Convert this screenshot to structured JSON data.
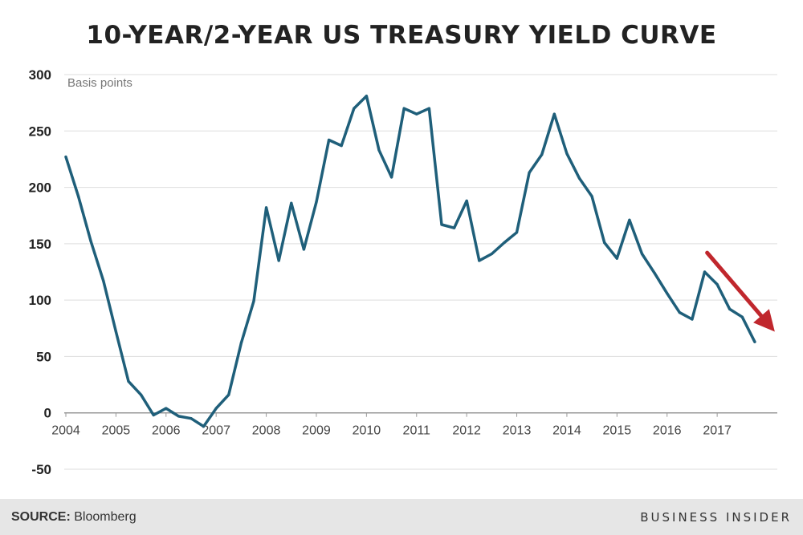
{
  "header": {
    "title": "10-YEAR/2-YEAR US TREASURY YIELD CURVE"
  },
  "footer": {
    "source_label": "SOURCE:",
    "source_value": "Bloomberg",
    "brand": "BUSINESS INSIDER"
  },
  "colors": {
    "line": "#1f5f7a",
    "arrow": "#c0272d",
    "grid": "#dddddd"
  },
  "chart_data": {
    "type": "line",
    "title": "10-YEAR/2-YEAR US TREASURY YIELD CURVE",
    "ylabel": "Basis points",
    "xlabel": "",
    "ylim": [
      -50,
      300
    ],
    "xlim": [
      2004.0,
      2018.2
    ],
    "yticks": [
      300,
      250,
      200,
      150,
      100,
      50,
      0,
      -50
    ],
    "xticks": [
      "2004",
      "2005",
      "2006",
      "2007",
      "2008",
      "2009",
      "2010",
      "2011",
      "2012",
      "2013",
      "2014",
      "2015",
      "2016",
      "2017"
    ],
    "grid": "horizontal",
    "series": [
      {
        "name": "",
        "x": [
          2004.0,
          2004.25,
          2004.5,
          2004.75,
          2005.0,
          2005.25,
          2005.5,
          2005.75,
          2006.0,
          2006.25,
          2006.5,
          2006.75,
          2007.0,
          2007.25,
          2007.5,
          2007.75,
          2008.0,
          2008.25,
          2008.5,
          2008.75,
          2009.0,
          2009.25,
          2009.5,
          2009.75,
          2010.0,
          2010.25,
          2010.5,
          2010.75,
          2011.0,
          2011.25,
          2011.5,
          2011.75,
          2012.0,
          2012.25,
          2012.5,
          2012.75,
          2013.0,
          2013.25,
          2013.5,
          2013.75,
          2014.0,
          2014.25,
          2014.5,
          2014.75,
          2015.0,
          2015.25,
          2015.5,
          2015.75,
          2016.0,
          2016.25,
          2016.5,
          2016.75,
          2017.0,
          2017.25,
          2017.5,
          2017.75
        ],
        "values": [
          227,
          192,
          152,
          117,
          72,
          28,
          16,
          -2,
          4,
          -3,
          -5,
          -12,
          4,
          16,
          62,
          99,
          182,
          135,
          186,
          145,
          187,
          242,
          237,
          270,
          281,
          233,
          209,
          270,
          265,
          270,
          167,
          164,
          188,
          135,
          141,
          151,
          160,
          213,
          229,
          265,
          230,
          208,
          192,
          151,
          137,
          171,
          141,
          124,
          106,
          89,
          83,
          125,
          114,
          92,
          85,
          63
        ]
      }
    ],
    "annotations": [
      {
        "type": "arrow",
        "from": [
          2016.8,
          142
        ],
        "to": [
          2018.15,
          72
        ],
        "color": "#c0272d"
      }
    ]
  }
}
